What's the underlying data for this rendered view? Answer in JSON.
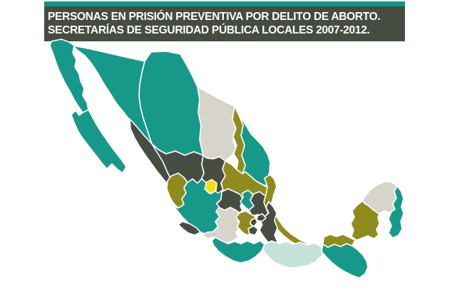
{
  "title": {
    "line1": "PERSONAS EN PRISIÓN PREVENTIVA POR DELITO DE ABORTO.",
    "line2": "SECRETARÍAS DE SEGURIDAD PÚBLICA LOCALES 2007-2012."
  },
  "colors": {
    "teal": "#17998A",
    "dark": "#484D44",
    "light_gray": "#D7D4CC",
    "olive": "#8F8C1D",
    "yellow": "#F6DF00",
    "light_teal": "#C4E2DA",
    "title_bg": "#474C43",
    "title_bar": "#0E9586",
    "title_text": "#FFFFFF",
    "state_border": "#FFFFFF",
    "background": "#FFFFFF"
  },
  "map": {
    "description": "choropleth-of-mexican-states",
    "states": [
      {
        "id": "sonora",
        "category": "teal"
      },
      {
        "id": "chihuahua",
        "category": "teal"
      },
      {
        "id": "coahuila",
        "category": "light_gray"
      },
      {
        "id": "tamaulipas",
        "category": "teal"
      },
      {
        "id": "nuevo-leon",
        "category": "olive"
      },
      {
        "id": "sinaloa",
        "category": "dark"
      },
      {
        "id": "durango",
        "category": "dark"
      },
      {
        "id": "zacatecas",
        "category": "dark"
      },
      {
        "id": "san-luis-potosi",
        "category": "olive"
      },
      {
        "id": "nayarit",
        "category": "olive"
      },
      {
        "id": "jalisco",
        "category": "teal"
      },
      {
        "id": "aguascalientes",
        "category": "yellow"
      },
      {
        "id": "guanajuato",
        "category": "dark"
      },
      {
        "id": "michoacan",
        "category": "light_gray"
      },
      {
        "id": "colima",
        "category": "dark"
      },
      {
        "id": "queretaro",
        "category": "teal"
      },
      {
        "id": "hidalgo",
        "category": "dark"
      },
      {
        "id": "veracruz",
        "category": "olive"
      },
      {
        "id": "puebla",
        "category": "dark"
      },
      {
        "id": "mexico",
        "category": "olive"
      },
      {
        "id": "tlaxcala",
        "category": "dark"
      },
      {
        "id": "cdmx",
        "category": "dark"
      },
      {
        "id": "morelos",
        "category": "dark"
      },
      {
        "id": "guerrero",
        "category": "teal"
      },
      {
        "id": "oaxaca",
        "category": "light_teal"
      },
      {
        "id": "tabasco",
        "category": "olive"
      },
      {
        "id": "chiapas",
        "category": "teal"
      },
      {
        "id": "campeche",
        "category": "olive"
      },
      {
        "id": "yucatan",
        "category": "light_gray"
      },
      {
        "id": "quintana-roo",
        "category": "teal"
      },
      {
        "id": "baja-california",
        "category": "teal"
      },
      {
        "id": "baja-california-sur",
        "category": "teal"
      }
    ]
  }
}
